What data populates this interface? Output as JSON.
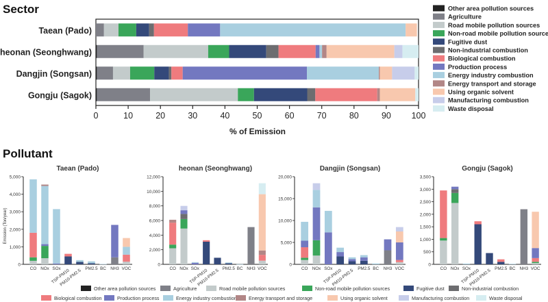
{
  "sources": [
    {
      "key": "other",
      "label": "Other area pollution sources",
      "color": "#222222"
    },
    {
      "key": "agri",
      "label": "Agriculture",
      "color": "#7f8088"
    },
    {
      "key": "road",
      "label": "Road mobile pollution sources",
      "color": "#c3cbcb"
    },
    {
      "key": "nonroad",
      "label": "Non-road mobile pollution sources",
      "color": "#3aa65a"
    },
    {
      "key": "fugitive",
      "label": "Fugitive dust",
      "color": "#34497a"
    },
    {
      "key": "nonind",
      "label": "Non-industrial combustion",
      "color": "#6d6d70"
    },
    {
      "key": "bio",
      "label": "Biological combustion",
      "color": "#ef7b7e"
    },
    {
      "key": "prod",
      "label": "Production process",
      "color": "#7378c0"
    },
    {
      "key": "energy",
      "label": "Energy industry combustion",
      "color": "#a9cfe0"
    },
    {
      "key": "transport",
      "label": "Energy transport and storage",
      "color": "#b28686"
    },
    {
      "key": "solvent",
      "label": "Using organic solvent",
      "color": "#f8c8ae"
    },
    {
      "key": "manuf",
      "label": "Manufacturing combustion",
      "color": "#c7cdea"
    },
    {
      "key": "waste",
      "label": "Waste disposal",
      "color": "#d6edf1"
    }
  ],
  "labels": {
    "sector_title": "Sector",
    "pollutant_title": "Pollutant",
    "sector_xlabel": "% of Emission",
    "pollutant_ylabel": "Emission (Ton/year)"
  },
  "chart_data": [
    {
      "type": "bar",
      "orientation": "horizontal",
      "stacked": true,
      "title": "Sector",
      "xlabel": "% of Emission",
      "xlim": [
        0,
        100
      ],
      "xticks": [
        0,
        10,
        20,
        30,
        40,
        50,
        60,
        70,
        80,
        90,
        100
      ],
      "categories": [
        "Taean (Pado)",
        "Cheonan (Seonghwang)",
        "Dangjin (Songsan)",
        "Gongju (Sagok)"
      ],
      "series": [
        {
          "name": "Other area pollution sources",
          "values": [
            0,
            0.3,
            0.3,
            0.3
          ]
        },
        {
          "name": "Agriculture",
          "values": [
            2.5,
            14.5,
            5,
            16.5
          ]
        },
        {
          "name": "Road mobile pollution sources",
          "values": [
            4.5,
            20,
            5.3,
            27.2
          ]
        },
        {
          "name": "Non-road mobile pollution sources",
          "values": [
            5.5,
            6.5,
            7.5,
            5
          ]
        },
        {
          "name": "Fugitive dust",
          "values": [
            4,
            11.5,
            4.5,
            16.5
          ]
        },
        {
          "name": "Non-industrial combustion",
          "values": [
            1.5,
            3.8,
            0.8,
            2.5
          ]
        },
        {
          "name": "Biological combustion",
          "values": [
            10.5,
            11.5,
            3.5,
            19.2
          ]
        },
        {
          "name": "Production process",
          "values": [
            10,
            1.2,
            38.5,
            0
          ]
        },
        {
          "name": "Energy industry combustion",
          "values": [
            57.5,
            0.8,
            22.3,
            0
          ]
        },
        {
          "name": "Energy transport and storage",
          "values": [
            0,
            1.4,
            0.3,
            0.8
          ]
        },
        {
          "name": "Using organic solvent",
          "values": [
            3.5,
            21,
            3.8,
            11
          ]
        },
        {
          "name": "Manufacturing combustion",
          "values": [
            0,
            2.5,
            7,
            0
          ]
        },
        {
          "name": "Waste disposal",
          "values": [
            0,
            5,
            1.2,
            1
          ]
        }
      ]
    },
    {
      "type": "bar",
      "stacked": true,
      "title": "Taean (Pado)",
      "ylabel": "Emission (Ton/year)",
      "ylim": [
        0,
        5000
      ],
      "yticks": [
        0,
        1000,
        2000,
        3000,
        4000,
        5000
      ],
      "ytick_labels": [
        "0",
        "1,000",
        "2,000",
        "3,000",
        "4,000",
        "5,000"
      ],
      "categories": [
        "CO",
        "NOx",
        "SOx",
        "TSP-PM10",
        "PM10-PM2.5",
        "PM2.5",
        "BC",
        "NH3",
        "VOC"
      ],
      "stacks": [
        {
          "fugitive": 0,
          "road": 200,
          "nonroad": 200,
          "bio": 1400,
          "energy": 3050
        },
        {
          "road": 350,
          "nonroad": 700,
          "transport": 80,
          "prod": 100,
          "energy": 3320
        },
        {
          "prod": 50,
          "energy": 3100
        },
        {
          "fugitive": 450,
          "bio": 150
        },
        {
          "fugitive": 140,
          "energy": 100
        },
        {
          "fugitive": 60,
          "energy": 110
        },
        {
          "energy": 20
        },
        {
          "agri": 400,
          "prod": 1850
        },
        {
          "bio": 400,
          "road": 150,
          "solvent": 500,
          "energy": 450
        }
      ]
    },
    {
      "type": "bar",
      "stacked": true,
      "title": "heonan (Seonghwang)",
      "ylim": [
        0,
        12000
      ],
      "yticks": [
        0,
        2000,
        4000,
        6000,
        8000,
        10000,
        12000
      ],
      "ytick_labels": [
        "0",
        "2,000",
        "4,000",
        "6,000",
        "8,000",
        "10,000",
        "12,000"
      ],
      "categories": [
        "CO",
        "NOx",
        "SOx",
        "TSP-PM10",
        "PM10-PM2.5",
        "PM2.5",
        "BC",
        "NH3",
        "VOC"
      ],
      "stacks": [
        {
          "road": 2200,
          "nonroad": 500,
          "bio": 3000,
          "transport": 400
        },
        {
          "road": 4900,
          "nonroad": 1300,
          "nonind": 700,
          "prod": 500,
          "manuf": 600
        },
        {
          "prod": 200,
          "energy": 100
        },
        {
          "fugitive": 3100,
          "bio": 200
        },
        {
          "fugitive": 900
        },
        {
          "fugitive": 150,
          "energy": 100
        },
        {
          "energy": 20
        },
        {
          "agri": 5100
        },
        {
          "road": 500,
          "bio": 800,
          "transport": 600,
          "solvent": 7700,
          "waste": 1500
        }
      ]
    },
    {
      "type": "bar",
      "stacked": true,
      "title": "Dangjin (Songsan)",
      "ylim": [
        0,
        20000
      ],
      "yticks": [
        0,
        5000,
        10000,
        15000,
        20000
      ],
      "ytick_labels": [
        "0",
        "5,000",
        "10,000",
        "15,000",
        "20,000"
      ],
      "categories": [
        "CO",
        "NOx",
        "SOx",
        "TSP-PM10",
        "PM10-PM2.5",
        "PM2.5",
        "BC",
        "NH3",
        "VOC"
      ],
      "stacks": [
        {
          "road": 1000,
          "nonroad": 500,
          "bio": 2400,
          "prod": 1500,
          "energy": 4300
        },
        {
          "road": 2000,
          "nonroad": 3500,
          "prod": 7500,
          "energy": 4000,
          "manuf": 1500
        },
        {
          "prod": 7300,
          "energy": 4900
        },
        {
          "fugitive": 1800,
          "prod": 1000,
          "energy": 1000
        },
        {
          "fugitive": 700,
          "prod": 500,
          "energy": 400
        },
        {
          "fugitive": 800,
          "prod": 800,
          "energy": 500
        },
        {
          "energy": 200
        },
        {
          "agri": 3200,
          "prod": 2500
        },
        {
          "road": 500,
          "bio": 500,
          "prod": 4000,
          "solvent": 2500,
          "manuf": 1000
        }
      ]
    },
    {
      "type": "bar",
      "stacked": true,
      "title": "Gongju (Sagok)",
      "ylim": [
        0,
        3500
      ],
      "yticks": [
        0,
        500,
        1000,
        1500,
        2000,
        2500,
        3000,
        3500
      ],
      "ytick_labels": [
        "0",
        "500",
        "1,000",
        "1,500",
        "2,000",
        "2,500",
        "3,000",
        "3,500"
      ],
      "categories": [
        "CO",
        "NOx",
        "SOx",
        "TSP-PM10",
        "PM10-PM2.5",
        "PM2.5",
        "BC",
        "NH3",
        "VOC"
      ],
      "stacks": [
        {
          "road": 950,
          "nonroad": 100,
          "bio": 1900
        },
        {
          "road": 2450,
          "nonroad": 400,
          "nonind": 150,
          "prod": 100
        },
        {
          "energy": 30
        },
        {
          "fugitive": 1600,
          "bio": 120
        },
        {
          "fugitive": 450
        },
        {
          "fugitive": 100,
          "bio": 100
        },
        {
          "energy": 20
        },
        {
          "agri": 2200
        },
        {
          "road": 50,
          "nonroad": 50,
          "bio": 150,
          "prod": 400,
          "solvent": 1450
        }
      ]
    }
  ]
}
